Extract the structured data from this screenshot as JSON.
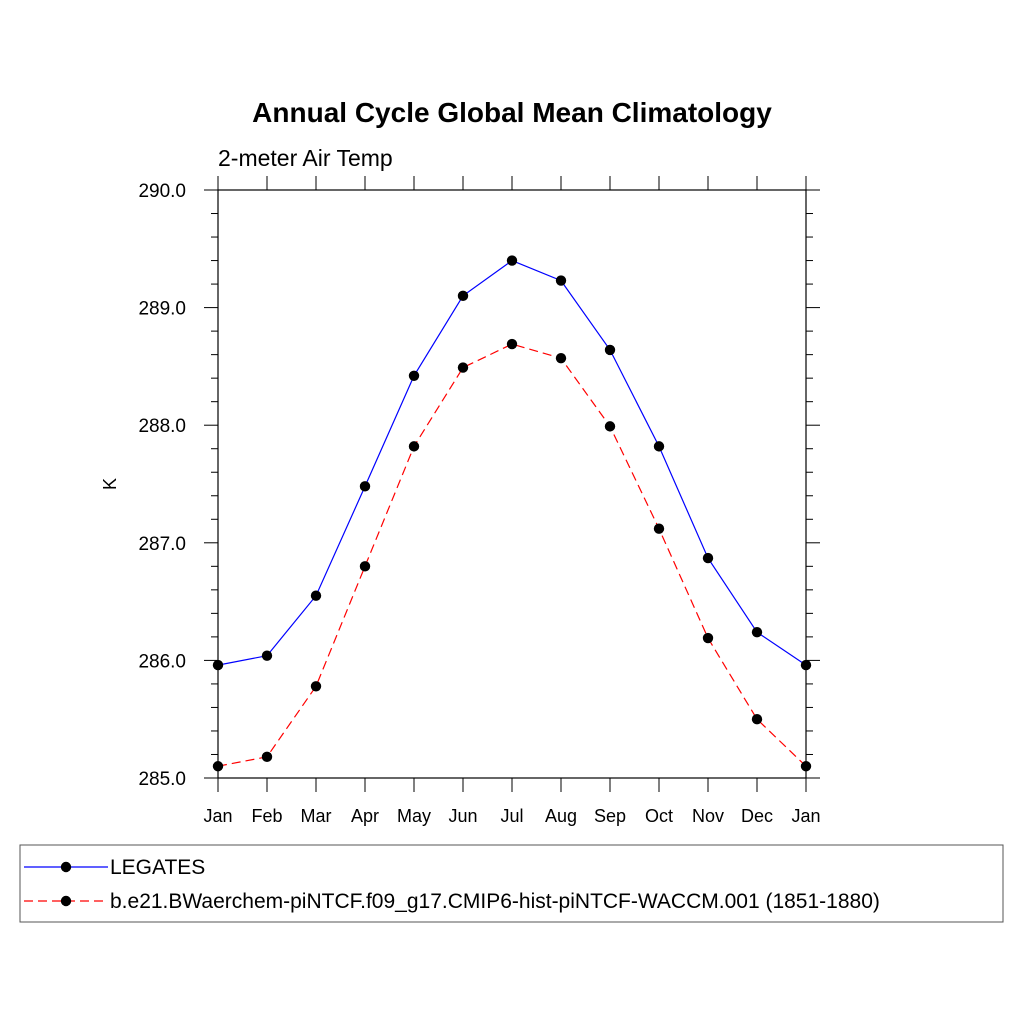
{
  "chart_data": {
    "type": "line",
    "title": "Annual Cycle Global Mean Climatology",
    "subtitle": "2-meter Air Temp",
    "xlabel": "",
    "ylabel": "K",
    "categories": [
      "Jan",
      "Feb",
      "Mar",
      "Apr",
      "May",
      "Jun",
      "Jul",
      "Aug",
      "Sep",
      "Oct",
      "Nov",
      "Dec",
      "Jan"
    ],
    "ylim": [
      285.0,
      290.0
    ],
    "yticks": [
      285.0,
      286.0,
      287.0,
      288.0,
      289.0,
      290.0
    ],
    "ytick_labels": [
      "285.0",
      "286.0",
      "287.0",
      "288.0",
      "289.0",
      "290.0"
    ],
    "grid": false,
    "legend_position": "bottom",
    "series": [
      {
        "name": "LEGATES",
        "color": "#0000ff",
        "line_style": "solid",
        "marker": "filled-circle",
        "values": [
          285.96,
          286.04,
          286.55,
          287.48,
          288.42,
          289.1,
          289.4,
          289.23,
          288.64,
          287.82,
          286.87,
          286.24,
          285.96
        ]
      },
      {
        "name": "b.e21.BWaerchem-piNTCF.f09_g17.CMIP6-hist-piNTCF-WACCM.001 (1851-1880)",
        "color": "#ff0000",
        "line_style": "dashed",
        "marker": "filled-circle",
        "values": [
          285.1,
          285.18,
          285.78,
          286.8,
          287.82,
          288.49,
          288.69,
          288.57,
          287.99,
          287.12,
          286.19,
          285.5,
          285.1
        ]
      }
    ]
  }
}
